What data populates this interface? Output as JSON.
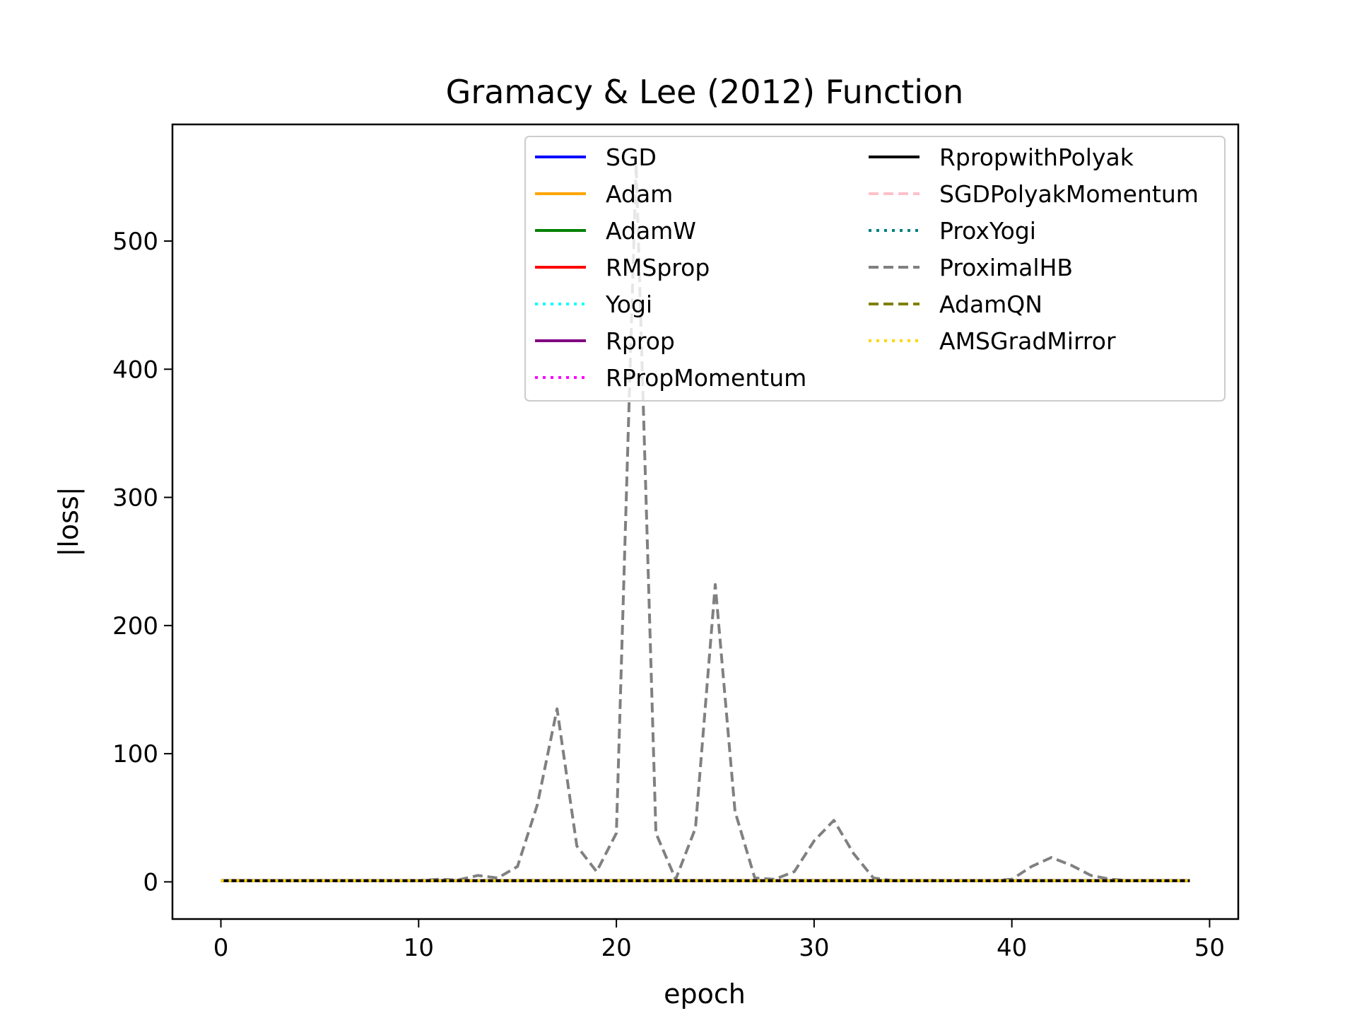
{
  "chart_data": {
    "type": "line",
    "title": "Gramacy & Lee (2012) Function",
    "xlabel": "epoch",
    "ylabel": "|loss|",
    "xlim": [
      -2.45,
      51.45
    ],
    "ylim": [
      -29,
      591
    ],
    "xticks": [
      0,
      10,
      20,
      30,
      40,
      50
    ],
    "yticks": [
      0,
      100,
      200,
      300,
      400,
      500
    ],
    "grid": false,
    "legend_position": "upper right",
    "legend_columns": 2,
    "series": [
      {
        "name": "SGD",
        "color": "#0000ff",
        "style": "solid",
        "values": [
          0.9,
          0.9,
          0.9,
          0.9,
          0.9,
          0.9,
          0.9,
          0.9,
          0.9,
          0.9,
          0.9,
          0.9,
          0.9,
          0.9,
          0.9,
          0.9,
          0.9,
          0.9,
          0.9,
          0.9,
          0.9,
          0.9,
          0.9,
          0.9,
          0.9,
          0.9,
          0.9,
          0.9,
          0.9,
          0.9,
          0.9,
          0.9,
          0.9,
          0.9,
          0.9,
          0.9,
          0.9,
          0.9,
          0.9,
          0.9,
          0.9,
          0.9,
          0.9,
          0.9,
          0.9,
          0.9,
          0.9,
          0.9,
          0.9,
          0.9
        ]
      },
      {
        "name": "Adam",
        "color": "#ffa500",
        "style": "solid",
        "values": [
          0.9,
          0.9,
          0.9,
          0.9,
          0.9,
          0.9,
          0.9,
          0.9,
          0.9,
          0.9,
          0.9,
          0.9,
          0.9,
          0.9,
          0.9,
          0.9,
          0.9,
          0.9,
          0.9,
          0.9,
          0.9,
          0.9,
          0.9,
          0.9,
          0.9,
          0.9,
          0.9,
          0.9,
          0.9,
          0.9,
          0.9,
          0.9,
          0.9,
          0.9,
          0.9,
          0.9,
          0.9,
          0.9,
          0.9,
          0.9,
          0.9,
          0.9,
          0.9,
          0.9,
          0.9,
          0.9,
          0.9,
          0.9,
          0.9,
          0.9
        ]
      },
      {
        "name": "AdamW",
        "color": "#008000",
        "style": "solid",
        "values": [
          0.9,
          0.9,
          0.9,
          0.9,
          0.9,
          0.9,
          0.9,
          0.9,
          0.9,
          0.9,
          0.9,
          0.9,
          0.9,
          0.9,
          0.9,
          0.9,
          0.9,
          0.9,
          0.9,
          0.9,
          0.9,
          0.9,
          0.9,
          0.9,
          0.9,
          0.9,
          0.9,
          0.9,
          0.9,
          0.9,
          0.9,
          0.9,
          0.9,
          0.9,
          0.9,
          0.9,
          0.9,
          0.9,
          0.9,
          0.9,
          0.9,
          0.9,
          0.9,
          0.9,
          0.9,
          0.9,
          0.9,
          0.9,
          0.9,
          0.9
        ]
      },
      {
        "name": "RMSprop",
        "color": "#ff0000",
        "style": "solid",
        "values": [
          0.9,
          0.9,
          0.9,
          0.9,
          0.9,
          0.9,
          0.9,
          0.9,
          0.9,
          0.9,
          0.9,
          0.9,
          0.9,
          0.9,
          0.9,
          0.9,
          0.9,
          0.9,
          0.9,
          0.9,
          0.9,
          0.9,
          0.9,
          0.9,
          0.9,
          0.9,
          0.9,
          0.9,
          0.9,
          0.9,
          0.9,
          0.9,
          0.9,
          0.9,
          0.9,
          0.9,
          0.9,
          0.9,
          0.9,
          0.9,
          0.9,
          0.9,
          0.9,
          0.9,
          0.9,
          0.9,
          0.9,
          0.9,
          0.9,
          0.9
        ]
      },
      {
        "name": "Yogi",
        "color": "#00ffff",
        "style": "dotted",
        "values": [
          0.9,
          0.9,
          0.9,
          0.9,
          0.9,
          0.9,
          0.9,
          0.9,
          0.9,
          0.9,
          0.9,
          0.9,
          0.9,
          0.9,
          0.9,
          0.9,
          0.9,
          0.9,
          0.9,
          0.9,
          0.9,
          0.9,
          0.9,
          0.9,
          0.9,
          0.9,
          0.9,
          0.9,
          0.9,
          0.9,
          0.9,
          0.9,
          0.9,
          0.9,
          0.9,
          0.9,
          0.9,
          0.9,
          0.9,
          0.9,
          0.9,
          0.9,
          0.9,
          0.9,
          0.9,
          0.9,
          0.9,
          0.9,
          0.9,
          0.9
        ]
      },
      {
        "name": "Rprop",
        "color": "#800080",
        "style": "solid",
        "values": [
          0.9,
          0.9,
          0.9,
          0.9,
          0.9,
          0.9,
          0.9,
          0.9,
          0.9,
          0.9,
          0.9,
          0.9,
          0.9,
          0.9,
          0.9,
          0.9,
          0.9,
          0.9,
          0.9,
          0.9,
          0.9,
          0.9,
          0.9,
          0.9,
          0.9,
          0.9,
          0.9,
          0.9,
          0.9,
          0.9,
          0.9,
          0.9,
          0.9,
          0.9,
          0.9,
          0.9,
          0.9,
          0.9,
          0.9,
          0.9,
          0.9,
          0.9,
          0.9,
          0.9,
          0.9,
          0.9,
          0.9,
          0.9,
          0.9,
          0.9
        ]
      },
      {
        "name": "RPropMomentum",
        "color": "#ff00ff",
        "style": "dotted",
        "values": [
          0.9,
          0.9,
          0.9,
          0.9,
          0.9,
          0.9,
          0.9,
          0.9,
          0.9,
          0.9,
          0.9,
          0.9,
          0.9,
          0.9,
          0.9,
          0.9,
          0.9,
          0.9,
          0.9,
          0.9,
          0.9,
          0.9,
          0.9,
          0.9,
          0.9,
          0.9,
          0.9,
          0.9,
          0.9,
          0.9,
          0.9,
          0.9,
          0.9,
          0.9,
          0.9,
          0.9,
          0.9,
          0.9,
          0.9,
          0.9,
          0.9,
          0.9,
          0.9,
          0.9,
          0.9,
          0.9,
          0.9,
          0.9,
          0.9,
          0.9
        ]
      },
      {
        "name": "ProximalHB",
        "color": "#808080",
        "style": "dashed",
        "values": [
          0.9,
          0.9,
          0.9,
          0.9,
          0.9,
          0.9,
          0.9,
          0.9,
          0.9,
          0.9,
          1,
          2,
          1.5,
          5,
          3,
          12,
          60,
          135,
          28,
          8,
          38,
          560,
          38,
          2,
          42,
          232,
          55,
          3,
          2,
          8,
          32,
          48,
          22,
          3,
          1,
          1,
          1,
          1,
          1,
          1,
          2,
          12,
          19,
          13,
          5,
          2,
          1,
          1,
          1,
          1
        ]
      },
      {
        "name": "AdamQN",
        "color": "#808000",
        "style": "dashed",
        "values": [
          0.9,
          0.9,
          0.9,
          0.9,
          0.9,
          0.9,
          0.9,
          0.9,
          0.9,
          0.9,
          0.9,
          0.9,
          0.9,
          0.9,
          0.9,
          0.9,
          0.9,
          0.9,
          0.9,
          0.9,
          0.9,
          0.9,
          0.9,
          0.9,
          0.9,
          0.9,
          0.9,
          0.9,
          0.9,
          0.9,
          0.9,
          0.9,
          0.9,
          0.9,
          0.9,
          0.9,
          0.9,
          0.9,
          0.9,
          0.9,
          0.9,
          0.9,
          0.9,
          0.9,
          0.9,
          0.9,
          0.9,
          0.9,
          0.9,
          0.9
        ]
      },
      {
        "name": "SGDPolyakMomentum",
        "color": "#ffc0cb",
        "style": "dashed",
        "values": [
          0.9,
          0.9,
          0.9,
          0.9,
          0.9,
          0.9,
          0.9,
          0.9,
          0.9,
          0.9,
          0.9,
          0.9,
          0.9,
          0.9,
          0.9,
          0.9,
          0.9,
          0.9,
          0.9,
          0.9,
          0.9,
          0.9,
          0.9,
          0.9,
          0.9,
          0.9,
          0.9,
          0.9,
          0.9,
          0.9,
          0.9,
          0.9,
          0.9,
          0.9,
          0.9,
          0.9,
          0.9,
          0.9,
          0.9,
          0.9,
          0.9,
          0.9,
          0.9,
          0.9,
          0.9,
          0.9,
          0.9,
          0.9,
          0.9,
          0.9
        ]
      },
      {
        "name": "ProxYogi",
        "color": "#008080",
        "style": "dotted",
        "values": [
          0.9,
          0.9,
          0.9,
          0.9,
          0.9,
          0.9,
          0.9,
          0.9,
          0.9,
          0.9,
          0.9,
          0.9,
          0.9,
          0.9,
          0.9,
          0.9,
          0.9,
          0.9,
          0.9,
          0.9,
          0.9,
          0.9,
          0.9,
          0.9,
          0.9,
          0.9,
          0.9,
          0.9,
          0.9,
          0.9,
          0.9,
          0.9,
          0.9,
          0.9,
          0.9,
          0.9,
          0.9,
          0.9,
          0.9,
          0.9,
          0.9,
          0.9,
          0.9,
          0.9,
          0.9,
          0.9,
          0.9,
          0.9,
          0.9,
          0.9
        ]
      },
      {
        "name": "RpropwithPolyak",
        "color": "#000000",
        "style": "solid",
        "values": [
          0.9,
          0.9,
          0.9,
          0.9,
          0.9,
          0.9,
          0.9,
          0.9,
          0.9,
          0.9,
          0.9,
          0.9,
          0.9,
          0.9,
          0.9,
          0.9,
          0.9,
          0.9,
          0.9,
          0.9,
          0.9,
          0.9,
          0.9,
          0.9,
          0.9,
          0.9,
          0.9,
          0.9,
          0.9,
          0.9,
          0.9,
          0.9,
          0.9,
          0.9,
          0.9,
          0.9,
          0.9,
          0.9,
          0.9,
          0.9,
          0.9,
          0.9,
          0.9,
          0.9,
          0.9,
          0.9,
          0.9,
          0.9,
          0.9,
          0.9
        ]
      },
      {
        "name": "AMSGradMirror",
        "color": "#ffd700",
        "style": "dotted",
        "values": [
          0.9,
          0.9,
          0.9,
          0.9,
          0.9,
          0.9,
          0.9,
          0.9,
          0.9,
          0.9,
          0.9,
          0.9,
          0.9,
          0.9,
          0.9,
          0.9,
          0.9,
          0.9,
          0.9,
          0.9,
          0.9,
          0.9,
          0.9,
          0.9,
          0.9,
          0.9,
          0.9,
          0.9,
          0.9,
          0.9,
          0.9,
          0.9,
          0.9,
          0.9,
          0.9,
          0.9,
          0.9,
          0.9,
          0.9,
          0.9,
          0.9,
          0.9,
          0.9,
          0.9,
          0.9,
          0.9,
          0.9,
          0.9,
          0.9,
          0.9
        ]
      }
    ],
    "legend_order": [
      "SGD",
      "Adam",
      "AdamW",
      "RMSprop",
      "Yogi",
      "Rprop",
      "RPropMomentum",
      "RpropwithPolyak",
      "SGDPolyakMomentum",
      "ProxYogi",
      "ProximalHB",
      "AdamQN",
      "AMSGradMirror"
    ]
  }
}
